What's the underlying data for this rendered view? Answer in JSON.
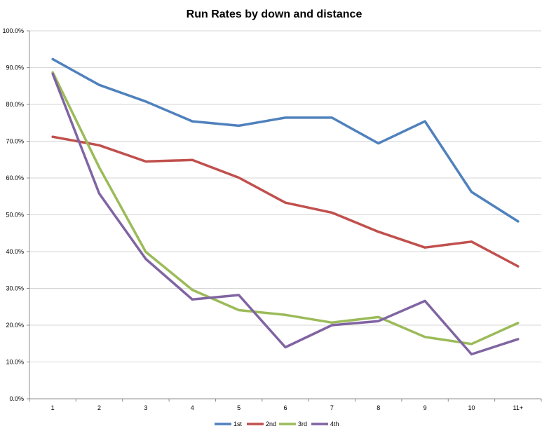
{
  "chart_data": {
    "type": "line",
    "title": "Run Rates by down and distance",
    "xlabel": "",
    "ylabel": "",
    "categories": [
      "1",
      "2",
      "3",
      "4",
      "5",
      "6",
      "7",
      "8",
      "9",
      "10",
      "11+"
    ],
    "ylim": [
      0,
      100
    ],
    "y_ticks": [
      "0.0%",
      "10.0%",
      "20.0%",
      "30.0%",
      "40.0%",
      "50.0%",
      "60.0%",
      "70.0%",
      "80.0%",
      "90.0%",
      "100.0%"
    ],
    "grid": true,
    "legend_position": "bottom",
    "series": [
      {
        "name": "1st",
        "color": "#4f81bd",
        "values": [
          92.3,
          85.3,
          80.8,
          75.4,
          74.2,
          76.4,
          76.4,
          69.4,
          75.4,
          56.2,
          48.2
        ]
      },
      {
        "name": "2nd",
        "color": "#c0504d",
        "values": [
          71.2,
          68.9,
          64.5,
          64.9,
          60.1,
          53.3,
          50.6,
          45.4,
          41.1,
          42.7,
          36.0
        ]
      },
      {
        "name": "3rd",
        "color": "#9bbb59",
        "values": [
          88.7,
          62.9,
          39.9,
          29.6,
          24.1,
          22.8,
          20.7,
          22.2,
          16.8,
          14.9,
          20.6
        ]
      },
      {
        "name": "4th",
        "color": "#8064a2",
        "values": [
          88.3,
          55.8,
          38.0,
          27.0,
          28.2,
          14.0,
          20.0,
          21.1,
          26.6,
          12.1,
          16.2
        ]
      }
    ]
  }
}
